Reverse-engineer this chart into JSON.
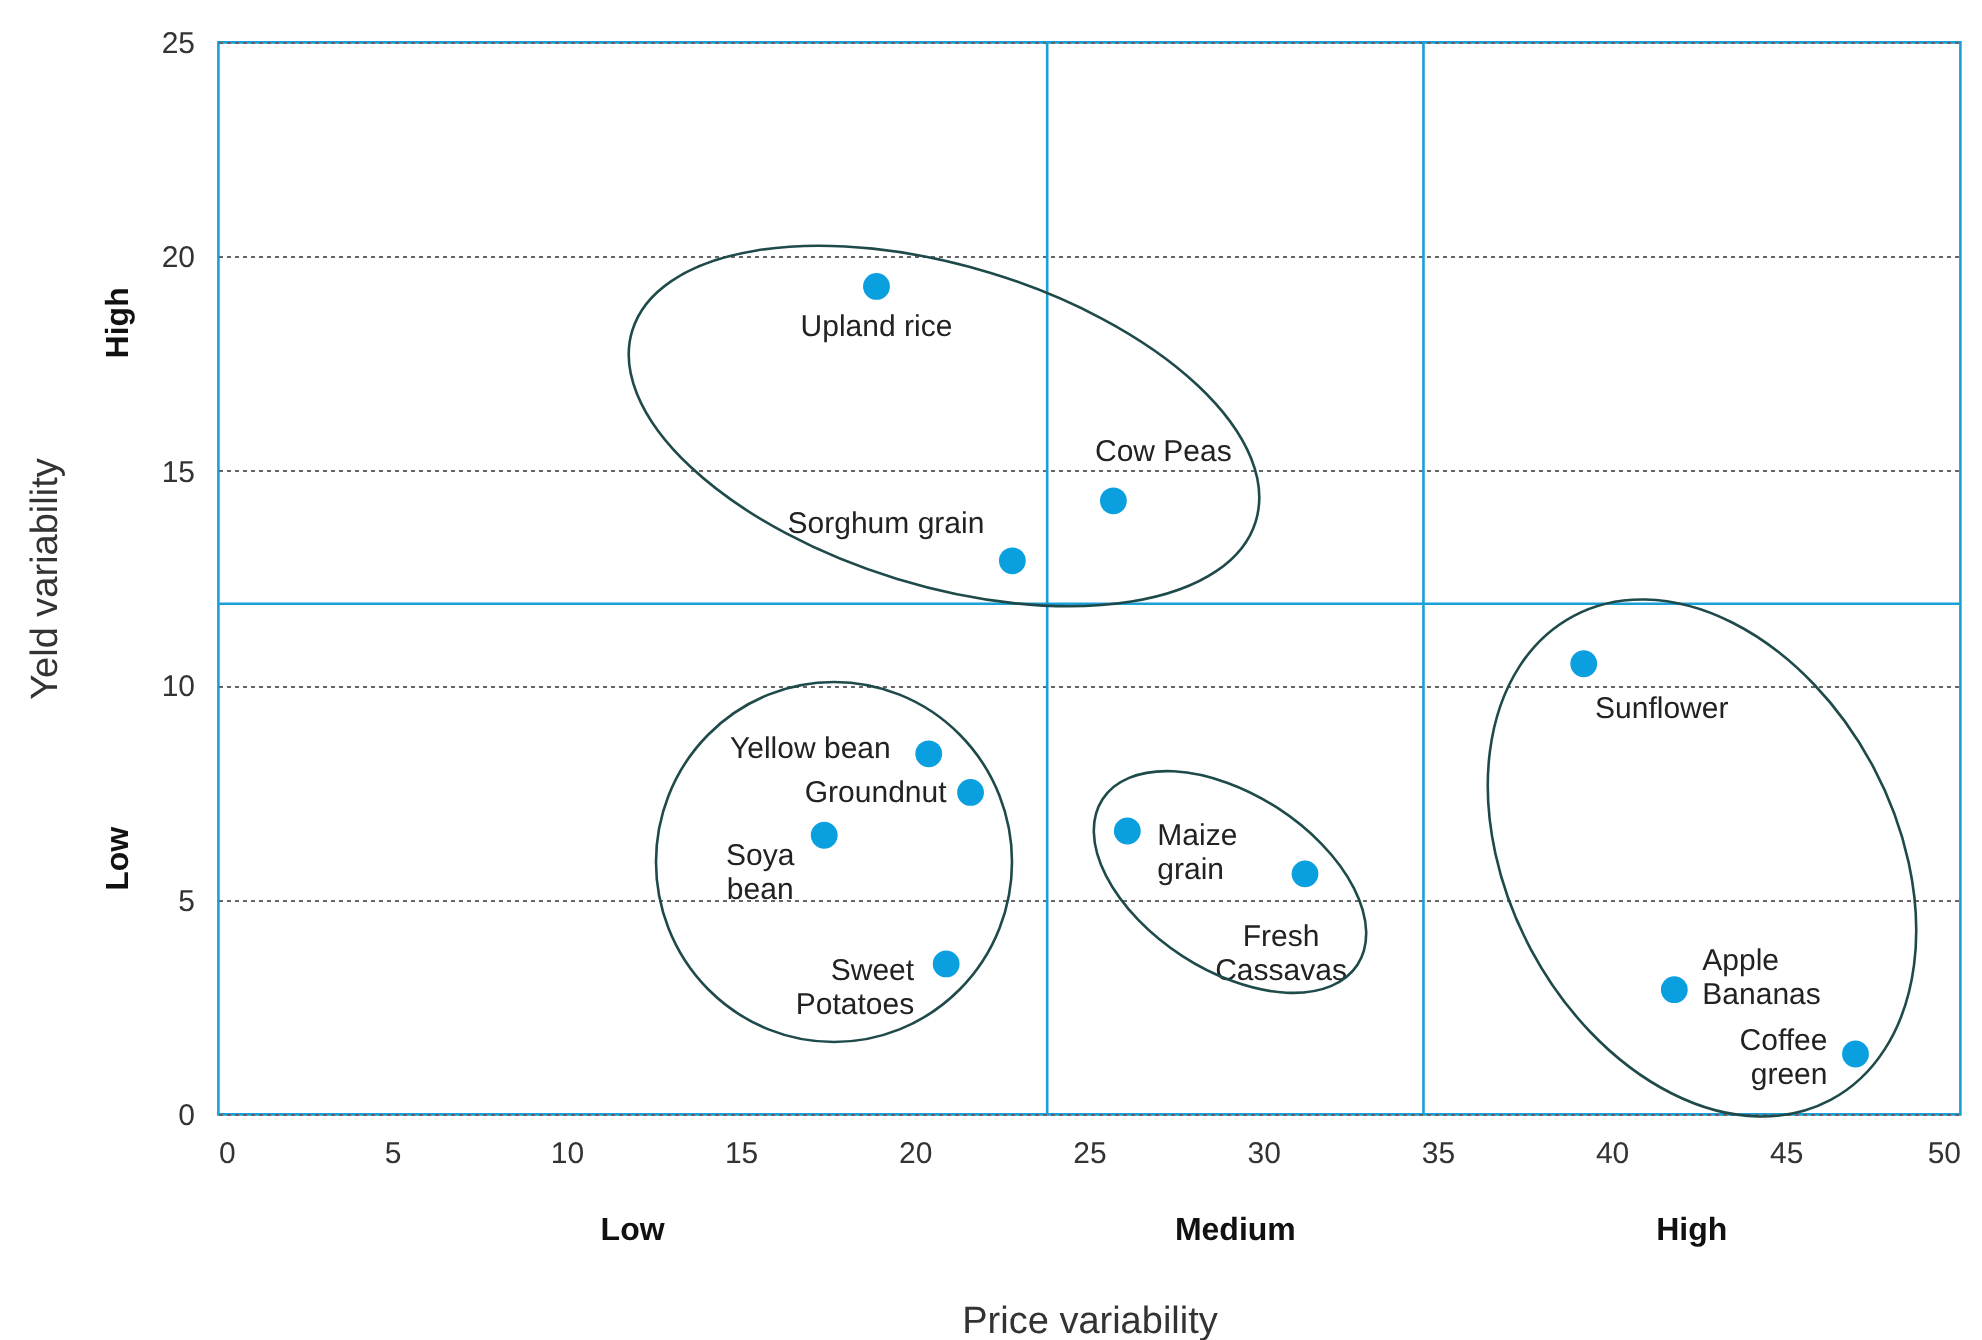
{
  "chart_data": {
    "type": "scatter",
    "xlabel": "Price variability",
    "ylabel": "Yeld variability",
    "xlim": [
      0,
      50
    ],
    "xticks": [
      0,
      5,
      10,
      15,
      20,
      25,
      30,
      35,
      40,
      45,
      50
    ],
    "ylim": [
      0,
      25
    ],
    "yticks": [
      0,
      5,
      10,
      15,
      20,
      25
    ],
    "grid": "y",
    "legend": false,
    "marker": "circle",
    "ref_lines": [
      {
        "axis": "x",
        "value": 23.8,
        "color": "#1a9fd9"
      },
      {
        "axis": "x",
        "value": 34.6,
        "color": "#1a9fd9"
      },
      {
        "axis": "y",
        "value": 11.9,
        "color": "#1a9fd9"
      }
    ],
    "annotations": [
      "Low",
      "Medium",
      "High",
      "Low",
      "High"
    ],
    "series": [
      {
        "name": "Upland rice",
        "color": "#0aa0e0",
        "x": [
          18.9
        ],
        "values": [
          19.3
        ]
      },
      {
        "name": "Cow Peas",
        "color": "#0aa0e0",
        "x": [
          25.7
        ],
        "values": [
          14.3
        ]
      },
      {
        "name": "Sorghum grain",
        "color": "#0aa0e0",
        "x": [
          22.8
        ],
        "values": [
          12.9
        ]
      },
      {
        "name": "Sunflower",
        "color": "#0aa0e0",
        "x": [
          39.2
        ],
        "values": [
          10.5
        ]
      },
      {
        "name": "Yellow bean",
        "color": "#0aa0e0",
        "x": [
          20.4
        ],
        "values": [
          8.4
        ]
      },
      {
        "name": "Groundnut",
        "color": "#0aa0e0",
        "x": [
          21.6
        ],
        "values": [
          7.5
        ]
      },
      {
        "name": "Soya bean",
        "color": "#0aa0e0",
        "x": [
          17.4
        ],
        "values": [
          6.5
        ]
      },
      {
        "name": "Maize grain",
        "color": "#0aa0e0",
        "x": [
          26.1
        ],
        "values": [
          6.6
        ]
      },
      {
        "name": "Fresh Cassavas",
        "color": "#0aa0e0",
        "x": [
          31.2
        ],
        "values": [
          5.6
        ]
      },
      {
        "name": "Sweet Potatoes",
        "color": "#0aa0e0",
        "x": [
          20.9
        ],
        "values": [
          3.5
        ]
      },
      {
        "name": "Apple Bananas",
        "color": "#0aa0e0",
        "x": [
          41.8
        ],
        "values": [
          2.9
        ]
      },
      {
        "name": "Coffee green",
        "color": "#0aa0e0",
        "x": [
          47.0
        ],
        "values": [
          1.4
        ]
      }
    ]
  }
}
